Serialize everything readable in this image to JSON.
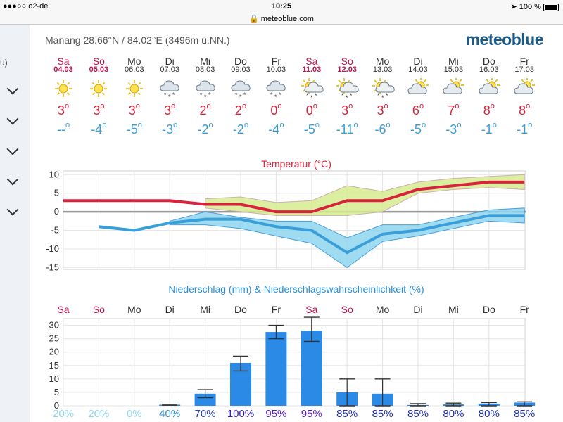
{
  "status": {
    "carrier": "●●●○○ o2-de",
    "time": "10:25",
    "url": "meteoblue.com",
    "battery": "100 %"
  },
  "sidebar": {
    "fragment": "u)",
    "chevrons": 5
  },
  "header": {
    "location": "Manang  28.66°N / 84.02°E (3496m ü.NN.)",
    "logo": "meteoblue"
  },
  "days": [
    {
      "name": "Sa",
      "date": "04.03",
      "weekend": true,
      "icon": "sun-icon",
      "max": "3",
      "min": "--"
    },
    {
      "name": "So",
      "date": "05.03",
      "weekend": true,
      "icon": "sun-icon",
      "max": "3",
      "min": "-4"
    },
    {
      "name": "Mo",
      "date": "06.03",
      "weekend": false,
      "icon": "sun-icon",
      "max": "3",
      "min": "-5"
    },
    {
      "name": "Di",
      "date": "07.03",
      "weekend": false,
      "icon": "cloud-snow-icon",
      "max": "3",
      "min": "-3"
    },
    {
      "name": "Mi",
      "date": "08.03",
      "weekend": false,
      "icon": "cloud-snow-icon",
      "max": "2",
      "min": "-2"
    },
    {
      "name": "Do",
      "date": "09.03",
      "weekend": false,
      "icon": "cloud-snow-icon",
      "max": "2",
      "min": "-2"
    },
    {
      "name": "Fr",
      "date": "10.03",
      "weekend": false,
      "icon": "cloud-snow-icon",
      "max": "0",
      "min": "-4"
    },
    {
      "name": "Sa",
      "date": "11.03",
      "weekend": true,
      "icon": "sun-cloud-snow-icon",
      "max": "0",
      "min": "-5"
    },
    {
      "name": "So",
      "date": "12.03",
      "weekend": true,
      "icon": "sun-cloud-snow-icon",
      "max": "3",
      "min": "-11"
    },
    {
      "name": "Mo",
      "date": "13.03",
      "weekend": false,
      "icon": "sun-cloud-snow-icon",
      "max": "3",
      "min": "-6"
    },
    {
      "name": "Di",
      "date": "14.03",
      "weekend": false,
      "icon": "sun-cloud-icon",
      "max": "6",
      "min": "-5"
    },
    {
      "name": "Mi",
      "date": "15.03",
      "weekend": false,
      "icon": "sun-cloud-icon",
      "max": "7",
      "min": "-3"
    },
    {
      "name": "Do",
      "date": "16.03",
      "weekend": false,
      "icon": "sun-cloud-icon",
      "max": "8",
      "min": "-1"
    },
    {
      "name": "Fr",
      "date": "17.03",
      "weekend": false,
      "icon": "sun-cloud-icon",
      "max": "8",
      "min": "-1"
    }
  ],
  "degree_symbol": "o",
  "colors": {
    "max": "#d7233b",
    "min": "#3a9fd8",
    "weekend": "#c0154b",
    "bar": "#2b8ae6",
    "logo": "#1c5a87"
  },
  "chart_data": [
    {
      "type": "line",
      "title": "Temperatur (°C)",
      "x": [
        "Sa",
        "So",
        "Mo",
        "Di",
        "Mi",
        "Do",
        "Fr",
        "Sa",
        "So",
        "Mo",
        "Di",
        "Mi",
        "Do",
        "Fr"
      ],
      "yticks": [
        10,
        5,
        0,
        -5,
        -10,
        -15
      ],
      "ylim": [
        -15.5,
        11
      ],
      "series": [
        {
          "values": [
            3,
            3,
            3,
            3,
            2,
            2,
            0,
            0,
            3,
            3,
            6,
            7,
            8,
            8
          ]
        },
        {
          "values": [
            null,
            -4,
            -5,
            -3,
            -2,
            -2,
            -4,
            -5,
            -11,
            -6,
            -5,
            -3,
            -1,
            -1
          ]
        }
      ],
      "max_band": {
        "lower": [
          null,
          null,
          null,
          null,
          1,
          0,
          -1,
          -1,
          -1,
          0,
          5,
          6,
          6.5,
          6
        ],
        "upper": [
          null,
          null,
          null,
          null,
          3.5,
          4,
          2.5,
          3,
          7,
          5.5,
          8,
          9,
          9.5,
          10
        ]
      },
      "min_band": {
        "lower": [
          null,
          null,
          null,
          -3.5,
          -3.5,
          -4.5,
          -6.5,
          -8.5,
          -15,
          -8,
          -6.5,
          -4.5,
          -2.5,
          -3
        ],
        "upper": [
          null,
          null,
          null,
          -2.5,
          0,
          -1.5,
          -2.5,
          -2.5,
          -7,
          -3.5,
          -3.5,
          -1.5,
          0.5,
          1
        ]
      }
    },
    {
      "type": "bar",
      "title": "Niederschlag (mm) & Niederschlagswahrscheinlichkeit (%)",
      "categories": [
        "Sa",
        "So",
        "Mo",
        "Di",
        "Mi",
        "Do",
        "Fr",
        "Sa",
        "So",
        "Mo",
        "Di",
        "Mi",
        "Do",
        "Fr"
      ],
      "values": [
        0,
        0,
        0,
        0.4,
        4.5,
        16,
        27.5,
        28,
        5,
        4.5,
        0.3,
        0.5,
        0.8,
        1.2
      ],
      "error_low": [
        0,
        0,
        0,
        0.2,
        3,
        13,
        25,
        24,
        0,
        0,
        0,
        0,
        0,
        0
      ],
      "error_high": [
        0,
        0,
        0,
        0.6,
        6,
        18.5,
        30,
        33,
        10,
        10,
        0.8,
        1,
        1.2,
        1.5
      ],
      "yticks": [
        0,
        5,
        10,
        15,
        20,
        25,
        30
      ],
      "ylim": [
        0,
        32.5
      ],
      "probability": [
        "20%",
        "20%",
        "0%",
        "40%",
        "70%",
        "100%",
        "95%",
        "95%",
        "85%",
        "85%",
        "85%",
        "80%",
        "80%",
        "85%"
      ],
      "probability_colors": [
        "#8fd6ef",
        "#8fd6ef",
        "#8fd6ef",
        "#2b8fd8",
        "#1e3fb8",
        "#3520c0",
        "#5a18c8",
        "#5a18c8",
        "#1e30b0",
        "#1e30b0",
        "#1e30b0",
        "#1e30b0",
        "#1e30b0",
        "#1e30b0"
      ]
    }
  ]
}
